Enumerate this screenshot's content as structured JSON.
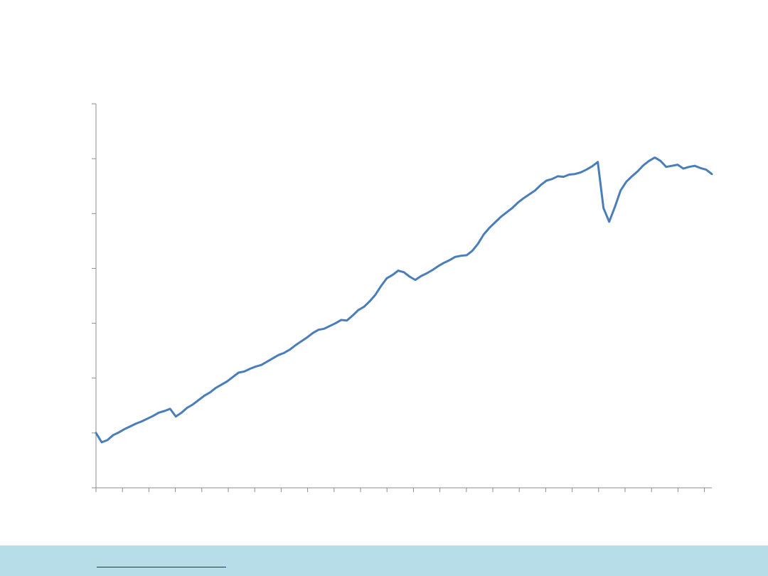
{
  "chart_data": {
    "type": "line",
    "title": "",
    "xlabel": "",
    "ylabel": "",
    "grid": false,
    "x_tick_count": 24,
    "y_tick_count": 7,
    "ylim": [
      0,
      7
    ],
    "series": [
      {
        "color": "#4a7ebb",
        "values": [
          1.0,
          0.83,
          0.87,
          0.96,
          1.01,
          1.07,
          1.12,
          1.17,
          1.21,
          1.26,
          1.31,
          1.37,
          1.4,
          1.44,
          1.3,
          1.37,
          1.46,
          1.52,
          1.6,
          1.68,
          1.74,
          1.82,
          1.88,
          1.94,
          2.02,
          2.1,
          2.12,
          2.17,
          2.21,
          2.24,
          2.3,
          2.36,
          2.42,
          2.46,
          2.52,
          2.6,
          2.67,
          2.74,
          2.82,
          2.88,
          2.9,
          2.95,
          3.0,
          3.06,
          3.05,
          3.14,
          3.24,
          3.3,
          3.4,
          3.52,
          3.68,
          3.82,
          3.88,
          3.96,
          3.93,
          3.85,
          3.79,
          3.86,
          3.91,
          3.97,
          4.04,
          4.1,
          4.15,
          4.21,
          4.23,
          4.24,
          4.32,
          4.45,
          4.62,
          4.74,
          4.84,
          4.94,
          5.02,
          5.1,
          5.2,
          5.28,
          5.35,
          5.42,
          5.52,
          5.6,
          5.63,
          5.68,
          5.67,
          5.71,
          5.72,
          5.75,
          5.8,
          5.86,
          5.94,
          5.1,
          4.85,
          5.12,
          5.42,
          5.58,
          5.68,
          5.77,
          5.88,
          5.96,
          6.02,
          5.96,
          5.85,
          5.87,
          5.89,
          5.82,
          5.85,
          5.87,
          5.83,
          5.8,
          5.72
        ]
      }
    ]
  },
  "footer": {
    "link_text": "",
    "band_color": "#b7dde8"
  }
}
